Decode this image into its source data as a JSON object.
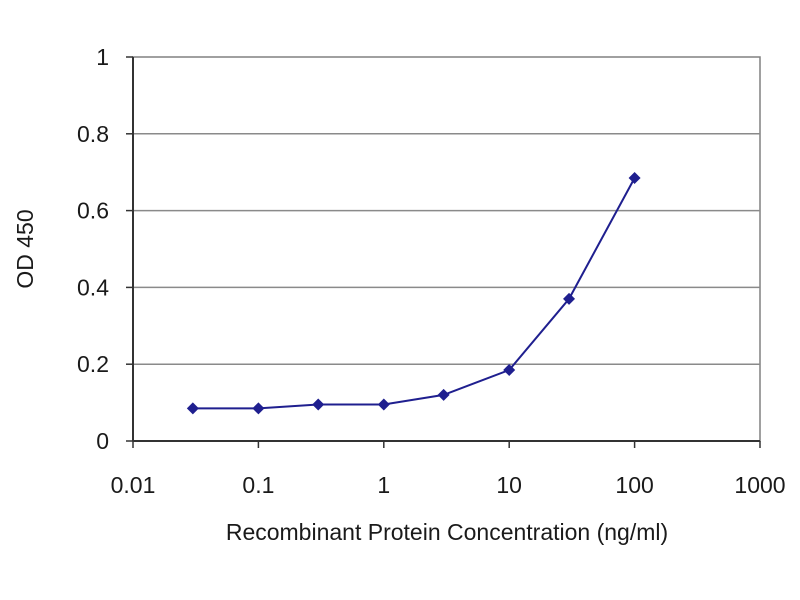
{
  "chart_data": {
    "type": "line",
    "title": "",
    "xlabel": "Recombinant Protein Concentration (ng/ml)",
    "ylabel": "OD 450",
    "xscale": "log",
    "xlim": [
      0.01,
      1000
    ],
    "ylim": [
      0,
      1
    ],
    "x_ticks": [
      "0.01",
      "0.1",
      "1",
      "10",
      "100",
      "1000"
    ],
    "y_ticks": [
      "0",
      "0.2",
      "0.4",
      "0.6",
      "0.8",
      "1"
    ],
    "grid": "horizontal",
    "legend": "none",
    "series": [
      {
        "color": "#1f1f8f",
        "marker": "diamond",
        "points": [
          {
            "x": 0.03,
            "y": 0.085
          },
          {
            "x": 0.1,
            "y": 0.085
          },
          {
            "x": 0.3,
            "y": 0.095
          },
          {
            "x": 1,
            "y": 0.095
          },
          {
            "x": 3,
            "y": 0.12
          },
          {
            "x": 10,
            "y": 0.185
          },
          {
            "x": 30,
            "y": 0.37
          },
          {
            "x": 100,
            "y": 0.685
          }
        ]
      }
    ]
  }
}
